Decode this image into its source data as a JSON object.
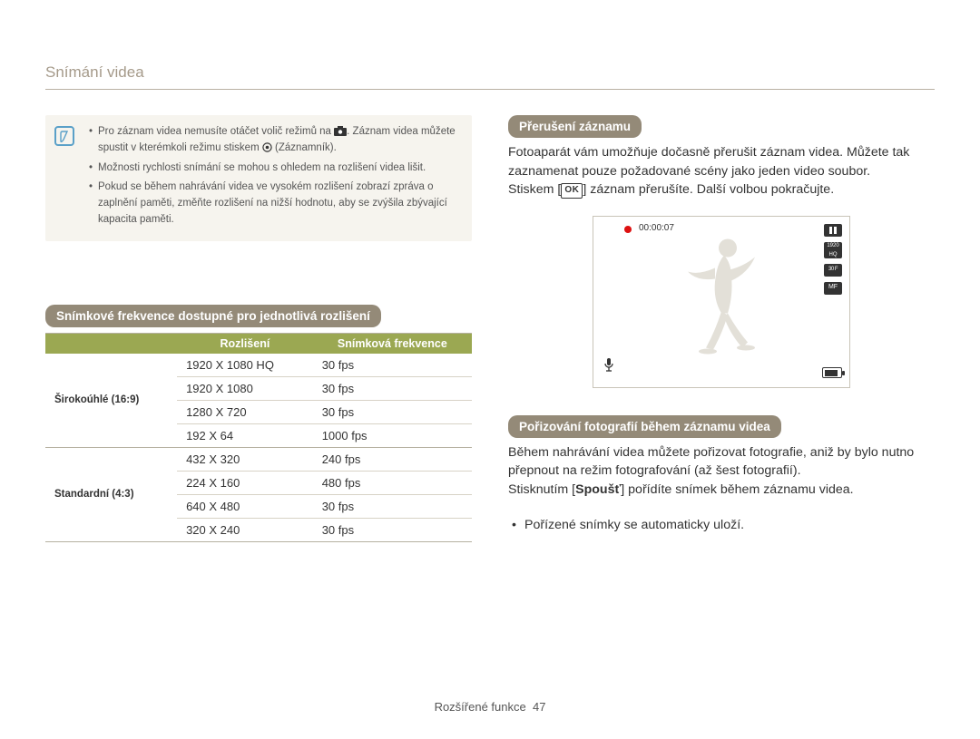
{
  "page_title": "Snímání videa",
  "footer": {
    "label": "Rozšířené funkce",
    "page_number": "47"
  },
  "colors": {
    "pill_bg": "#948a78",
    "table_header_bg": "#9ba852",
    "title_color": "#a59a8a",
    "infobox_bg": "#f6f4ee",
    "info_icon_border": "#5aa0c8"
  },
  "info_box": {
    "items": [
      {
        "pre": "Pro záznam videa nemusíte otáčet volič režimů na ",
        "post": ". Záznam videa můžete spustit v kterémkoli režimu stiskem ",
        "tail": " (Záznamník)."
      },
      {
        "text": "Možnosti rychlosti snímání se mohou s ohledem na rozlišení videa lišit."
      },
      {
        "text": "Pokud se během nahrávání videa ve vysokém rozlišení zobrazí zpráva o zaplnění paměti, změňte rozlišení na nižší hodnotu, aby se zvýšila zbývající kapacita paměti."
      }
    ]
  },
  "table_section": {
    "heading": "Snímkové frekvence dostupné pro jednotlivá rozlišení",
    "columns": [
      "",
      "Rozlišení",
      "Snímková frekvence"
    ],
    "groups": [
      {
        "label": "Širokoúhlé (16:9)",
        "rows": [
          {
            "res": "1920 X 1080 HQ",
            "fps": "30 fps"
          },
          {
            "res": "1920 X 1080",
            "fps": "30 fps"
          },
          {
            "res": "1280 X 720",
            "fps": "30 fps"
          },
          {
            "res": "192 X 64",
            "fps": "1000 fps"
          }
        ]
      },
      {
        "label": "Standardní (4:3)",
        "rows": [
          {
            "res": "432 X 320",
            "fps": "240 fps"
          },
          {
            "res": "224 X 160",
            "fps": "480 fps"
          },
          {
            "res": "640 X 480",
            "fps": "30 fps"
          },
          {
            "res": "320 X 240",
            "fps": "30 fps"
          }
        ]
      }
    ]
  },
  "right": {
    "section1": {
      "heading": "Přerušení záznamu",
      "p1": "Fotoaparát vám umožňuje dočasně přerušit záznam videa. Můžete tak zaznamenat pouze požadované scény jako jeden video soubor.",
      "p2_pre": "Stiskem [",
      "p2_ok": "OK",
      "p2_post": "] záznam přerušíte. Další volbou pokračujte."
    },
    "preview": {
      "timer": "00:00:07"
    },
    "section2": {
      "heading": "Pořizování fotografií během záznamu videa",
      "p1": "Během nahrávání videa můžete pořizovat fotografie, aniž by bylo nutno přepnout na režim fotografování (až šest fotografií).",
      "p2_pre": "Stisknutím [",
      "p2_bold": "Spoušť",
      "p2_post": "] pořídíte snímek během záznamu videa.",
      "bullet1": "Pořízené snímky se automaticky uloží."
    }
  }
}
